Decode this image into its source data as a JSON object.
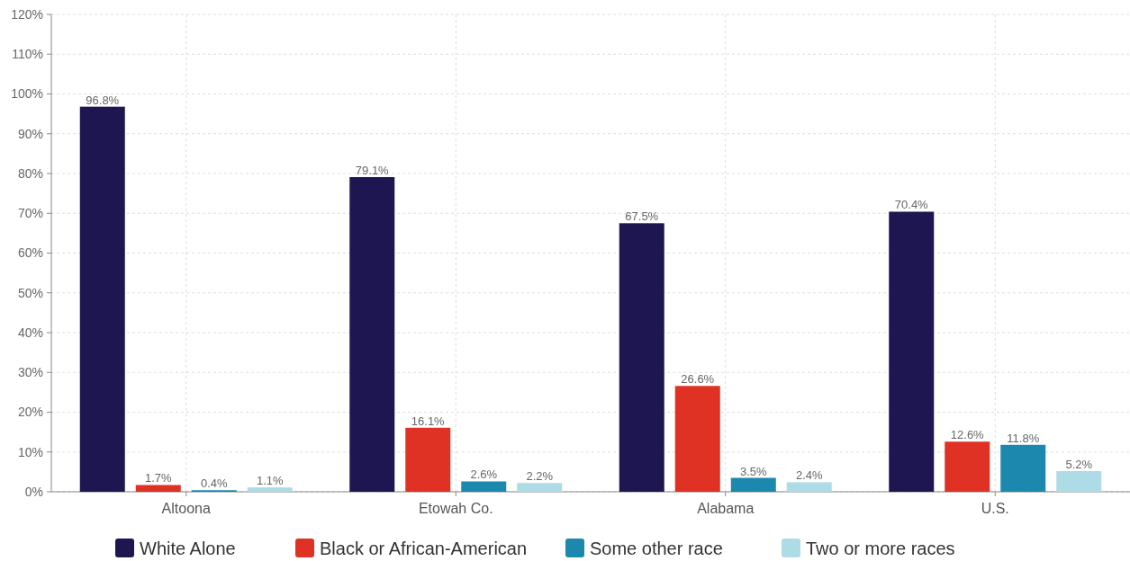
{
  "chart_data": {
    "type": "bar",
    "categories": [
      "Altoona",
      "Etowah Co.",
      "Alabama",
      "U.S."
    ],
    "series": [
      {
        "name": "White Alone",
        "color": "#1e1650",
        "values": [
          96.8,
          79.1,
          67.5,
          70.4
        ],
        "value_labels": [
          "96.8%",
          "79.1%",
          "67.5%",
          "70.4%"
        ]
      },
      {
        "name": "Black or African-American",
        "color": "#e03224",
        "values": [
          1.7,
          16.1,
          26.6,
          12.6
        ],
        "value_labels": [
          "1.7%",
          "16.1%",
          "26.6%",
          "12.6%"
        ]
      },
      {
        "name": "Some other race",
        "color": "#1c88ad",
        "values": [
          0.4,
          2.6,
          3.5,
          11.8
        ],
        "value_labels": [
          "0.4%",
          "2.6%",
          "3.5%",
          "11.8%"
        ]
      },
      {
        "name": "Two or more races",
        "color": "#aedce6",
        "values": [
          1.1,
          2.2,
          2.4,
          5.2
        ],
        "value_labels": [
          "1.1%",
          "2.2%",
          "2.4%",
          "5.2%"
        ]
      }
    ],
    "ylim": [
      0,
      120
    ],
    "yticks": [
      {
        "value": 0,
        "label": "0%"
      },
      {
        "value": 10,
        "label": "10%"
      },
      {
        "value": 20,
        "label": "20%"
      },
      {
        "value": 30,
        "label": "30%"
      },
      {
        "value": 40,
        "label": "40%"
      },
      {
        "value": 50,
        "label": "50%"
      },
      {
        "value": 60,
        "label": "60%"
      },
      {
        "value": 70,
        "label": "70%"
      },
      {
        "value": 80,
        "label": "80%"
      },
      {
        "value": 90,
        "label": "90%"
      },
      {
        "value": 100,
        "label": "100%"
      },
      {
        "value": 110,
        "label": "110%"
      },
      {
        "value": 120,
        "label": "120%"
      }
    ],
    "grid": true,
    "legend": "bottom"
  }
}
